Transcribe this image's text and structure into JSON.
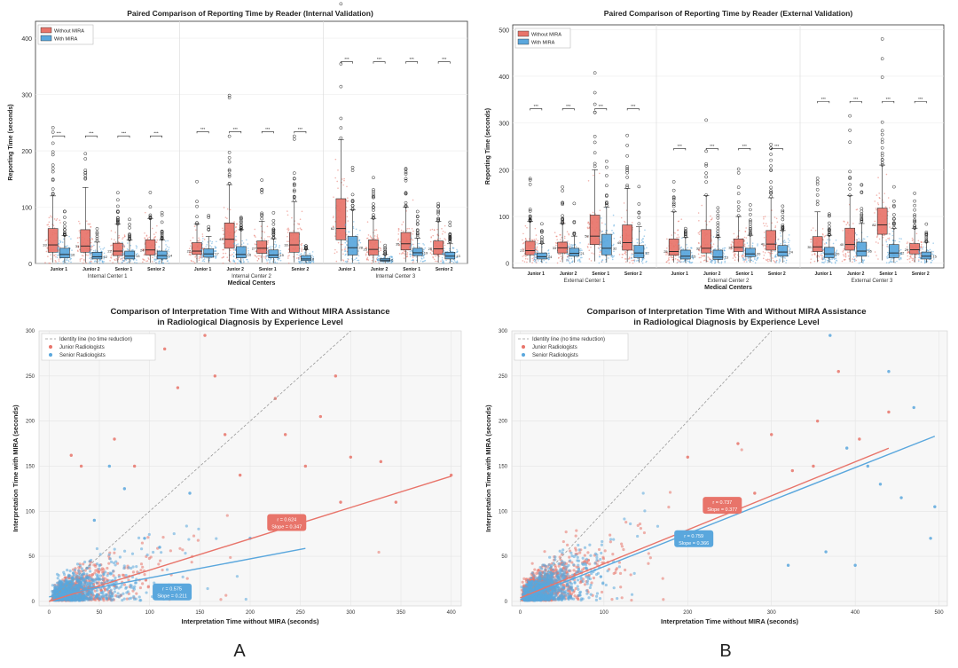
{
  "colors": {
    "without": "#e8746a",
    "with": "#5aa7dd",
    "identity": "#999999"
  },
  "chart_data": [
    {
      "id": "box-internal",
      "type": "box",
      "title": "Paired Comparison of Reporting Time by Reader (Internal Validation)",
      "xlabel": "Medical Centers",
      "ylabel": "Reporting Time (seconds)",
      "ylim": [
        0,
        430
      ],
      "yticks": [
        0,
        100,
        200,
        300,
        400
      ],
      "legend": {
        "position": "top-left",
        "entries": [
          "Without MIRA",
          "With MIRA"
        ]
      },
      "significance_label": "***",
      "groups": [
        {
          "center": "Internal Center 1",
          "readers": [
            {
              "reader": "Junior 1",
              "without": {
                "q1": 20,
                "median": 33,
                "q3": 62,
                "whisker_high": 120,
                "label": "33"
              },
              "with": {
                "q1": 10,
                "median": 16,
                "q3": 27,
                "whisker_high": 50,
                "label": "16"
              }
            },
            {
              "reader": "Junior 2",
              "without": {
                "q1": 20,
                "median": 31,
                "q3": 60,
                "whisker_high": 135,
                "label": "31"
              },
              "with": {
                "q1": 8,
                "median": 12,
                "q3": 20,
                "whisker_high": 38,
                "label": "12"
              }
            },
            {
              "reader": "Senior 1",
              "without": {
                "q1": 14,
                "median": 22,
                "q3": 36,
                "whisker_high": 70,
                "label": "22"
              },
              "with": {
                "q1": 8,
                "median": 13,
                "q3": 22,
                "whisker_high": 42,
                "label": "13"
              }
            },
            {
              "reader": "Senior 2",
              "without": {
                "q1": 15,
                "median": 24,
                "q3": 42,
                "whisker_high": 80,
                "label": "24"
              },
              "with": {
                "q1": 8,
                "median": 14,
                "q3": 22,
                "whisker_high": 42,
                "label": "14"
              }
            }
          ]
        },
        {
          "center": "Internal Center 2",
          "readers": [
            {
              "reader": "Junior 1",
              "without": {
                "q1": 16,
                "median": 22,
                "q3": 37,
                "whisker_high": 70,
                "label": "22"
              },
              "with": {
                "q1": 11,
                "median": 17,
                "q3": 26,
                "whisker_high": 48,
                "label": "17"
              }
            },
            {
              "reader": "Junior 2",
              "without": {
                "q1": 27,
                "median": 43,
                "q3": 72,
                "whisker_high": 140,
                "label": "43"
              },
              "with": {
                "q1": 10,
                "median": 16,
                "q3": 30,
                "whisker_high": 60,
                "label": "16"
              }
            },
            {
              "reader": "Senior 1",
              "without": {
                "q1": 18,
                "median": 27,
                "q3": 40,
                "whisker_high": 75,
                "label": "27"
              },
              "with": {
                "q1": 10,
                "median": 15,
                "q3": 24,
                "whisker_high": 44,
                "label": "15"
              }
            },
            {
              "reader": "Senior 2",
              "without": {
                "q1": 20,
                "median": 33,
                "q3": 55,
                "whisker_high": 110,
                "label": "33"
              },
              "with": {
                "q1": 5,
                "median": 8,
                "q3": 14,
                "whisker_high": 25,
                "label": "8"
              }
            }
          ]
        },
        {
          "center": "Internal Center 3",
          "readers": [
            {
              "reader": "Junior 1",
              "without": {
                "q1": 42,
                "median": 62,
                "q3": 115,
                "whisker_high": 220,
                "label": "62"
              },
              "with": {
                "q1": 15,
                "median": 28,
                "q3": 48,
                "whisker_high": 95,
                "label": "28"
              }
            },
            {
              "reader": "Junior 2",
              "without": {
                "q1": 15,
                "median": 25,
                "q3": 42,
                "whisker_high": 80,
                "label": "25"
              },
              "with": {
                "q1": 4,
                "median": 6,
                "q3": 9,
                "whisker_high": 16,
                "label": "6"
              }
            },
            {
              "reader": "Senior 1",
              "without": {
                "q1": 24,
                "median": 35,
                "q3": 55,
                "whisker_high": 100,
                "label": "35"
              },
              "with": {
                "q1": 14,
                "median": 19,
                "q3": 27,
                "whisker_high": 45,
                "label": "19"
              }
            },
            {
              "reader": "Senior 2",
              "without": {
                "q1": 16,
                "median": 26,
                "q3": 40,
                "whisker_high": 75,
                "label": "26"
              },
              "with": {
                "q1": 8,
                "median": 13,
                "q3": 20,
                "whisker_high": 35,
                "label": "13"
              }
            }
          ]
        }
      ]
    },
    {
      "id": "box-external",
      "type": "box",
      "title": "Paired Comparison of Reporting Time by Reader (External Validation)",
      "xlabel": "Medical Centers",
      "ylabel": "Reporting Time (seconds)",
      "ylim": [
        -10,
        510
      ],
      "yticks": [
        0,
        100,
        200,
        300,
        400,
        500
      ],
      "legend": {
        "position": "top-left",
        "entries": [
          "Without MIRA",
          "With MIRA"
        ]
      },
      "significance_label": "***",
      "groups": [
        {
          "center": "External Center 1",
          "readers": [
            {
              "reader": "Junior 1",
              "without": {
                "q1": 18,
                "median": 27,
                "q3": 47,
                "whisker_high": 90,
                "label": "27"
              },
              "with": {
                "q1": 9,
                "median": 14,
                "q3": 22,
                "whisker_high": 42,
                "label": "14"
              }
            },
            {
              "reader": "Junior 2",
              "without": {
                "q1": 22,
                "median": 33,
                "q3": 45,
                "whisker_high": 85,
                "label": "33"
              },
              "with": {
                "q1": 15,
                "median": 21,
                "q3": 32,
                "whisker_high": 58,
                "label": "21"
              }
            },
            {
              "reader": "Senior 1",
              "without": {
                "q1": 40,
                "median": 58,
                "q3": 103,
                "whisker_high": 200,
                "label": "58"
              },
              "with": {
                "q1": 18,
                "median": 32,
                "q3": 62,
                "whisker_high": 120,
                "label": "32"
              }
            },
            {
              "reader": "Senior 2",
              "without": {
                "q1": 28,
                "median": 44,
                "q3": 82,
                "whisker_high": 160,
                "label": "44"
              },
              "with": {
                "q1": 12,
                "median": 22,
                "q3": 38,
                "whisker_high": 78,
                "label": "22"
              }
            }
          ]
        },
        {
          "center": "External Center 2",
          "readers": [
            {
              "reader": "Junior 1",
              "without": {
                "q1": 17,
                "median": 25,
                "q3": 52,
                "whisker_high": 110,
                "label": "25"
              },
              "with": {
                "q1": 9,
                "median": 15,
                "q3": 28,
                "whisker_high": 55,
                "label": "15"
              }
            },
            {
              "reader": "Junior 2",
              "without": {
                "q1": 22,
                "median": 32,
                "q3": 72,
                "whisker_high": 145,
                "label": "32"
              },
              "with": {
                "q1": 8,
                "median": 13,
                "q3": 28,
                "whisker_high": 55,
                "label": "13"
              }
            },
            {
              "reader": "Senior 1",
              "without": {
                "q1": 25,
                "median": 34,
                "q3": 52,
                "whisker_high": 100,
                "label": "34"
              },
              "with": {
                "q1": 14,
                "median": 20,
                "q3": 32,
                "whisker_high": 60,
                "label": "20"
              }
            },
            {
              "reader": "Senior 2",
              "without": {
                "q1": 28,
                "median": 41,
                "q3": 70,
                "whisker_high": 140,
                "label": "41"
              },
              "with": {
                "q1": 15,
                "median": 24,
                "q3": 38,
                "whisker_high": 70,
                "label": "24"
              }
            }
          ]
        },
        {
          "center": "External Center 3",
          "readers": [
            {
              "reader": "Junior 1",
              "without": {
                "q1": 25,
                "median": 35,
                "q3": 57,
                "whisker_high": 110,
                "label": "35"
              },
              "with": {
                "q1": 12,
                "median": 20,
                "q3": 34,
                "whisker_high": 60,
                "label": "20"
              }
            },
            {
              "reader": "Junior 2",
              "without": {
                "q1": 28,
                "median": 40,
                "q3": 75,
                "whisker_high": 145,
                "label": "40"
              },
              "with": {
                "q1": 15,
                "median": 26,
                "q3": 45,
                "whisker_high": 85,
                "label": "26"
              }
            },
            {
              "reader": "Senior 1",
              "without": {
                "q1": 62,
                "median": 82,
                "q3": 118,
                "whisker_high": 210,
                "label": "82"
              },
              "with": {
                "q1": 12,
                "median": 22,
                "q3": 40,
                "whisker_high": 75,
                "label": "22"
              }
            },
            {
              "reader": "Senior 2",
              "without": {
                "q1": 20,
                "median": 29,
                "q3": 42,
                "whisker_high": 75,
                "label": "29"
              },
              "with": {
                "q1": 9,
                "median": 15,
                "q3": 24,
                "whisker_high": 45,
                "label": "15"
              }
            }
          ]
        }
      ]
    },
    {
      "id": "scatter-A",
      "type": "scatter",
      "panel_label": "A",
      "title": "Comparison of Interpretation Time With and Without MIRA Assistance",
      "subtitle": "in Radiological Diagnosis by Experience Level",
      "xlabel": "Interpretation Time without MIRA (seconds)",
      "ylabel": "Interpretation Time with MIRA (seconds)",
      "xlim": [
        -10,
        410
      ],
      "ylim": [
        -5,
        300
      ],
      "xticks": [
        0,
        50,
        100,
        150,
        200,
        250,
        300,
        350,
        400
      ],
      "yticks": [
        0,
        50,
        100,
        150,
        200,
        250,
        300
      ],
      "legend": {
        "position": "top-left",
        "entries": [
          "Identity line (no time reduction)",
          "Junior Radiologists",
          "Senior Radiologists"
        ]
      },
      "fits": [
        {
          "group": "Junior Radiologists",
          "x_range": [
            0,
            400
          ],
          "intercept": 0,
          "slope": 0.347,
          "annotation": [
            "r = 0.624",
            "Slope = 0.347"
          ]
        },
        {
          "group": "Senior Radiologists",
          "x_range": [
            0,
            255
          ],
          "intercept": 5,
          "slope": 0.211,
          "annotation": [
            "r = 0.575",
            "Slope = 0.211"
          ]
        }
      ],
      "outliers_junior": [
        [
          32,
          150
        ],
        [
          65,
          180
        ],
        [
          85,
          150
        ],
        [
          115,
          280
        ],
        [
          128,
          237
        ],
        [
          155,
          295
        ],
        [
          165,
          250
        ],
        [
          225,
          225
        ],
        [
          235,
          185
        ],
        [
          270,
          205
        ],
        [
          285,
          250
        ],
        [
          300,
          160
        ],
        [
          330,
          155
        ],
        [
          400,
          140
        ],
        [
          22,
          162
        ],
        [
          175,
          185
        ],
        [
          255,
          150
        ],
        [
          190,
          140
        ],
        [
          290,
          110
        ],
        [
          345,
          110
        ]
      ],
      "outliers_senior": [
        [
          60,
          150
        ],
        [
          75,
          125
        ],
        [
          45,
          90
        ],
        [
          95,
          70
        ],
        [
          140,
          120
        ],
        [
          110,
          60
        ],
        [
          200,
          70
        ]
      ]
    },
    {
      "id": "scatter-B",
      "type": "scatter",
      "panel_label": "B",
      "title": "Comparison of Interpretation Time With and Without MIRA Assistance",
      "subtitle": "in Radiological Diagnosis by Experience Level",
      "xlabel": "Interpretation Time without MIRA (seconds)",
      "ylabel": "Interpretation Time with MIRA (seconds)",
      "xlim": [
        -10,
        510
      ],
      "ylim": [
        -5,
        300
      ],
      "xticks": [
        0,
        100,
        200,
        300,
        400,
        500
      ],
      "yticks": [
        0,
        50,
        100,
        150,
        200,
        250,
        300
      ],
      "legend": {
        "position": "top-left",
        "entries": [
          "Identity line (no time reduction)",
          "Junior Radiologists",
          "Senior Radiologists"
        ]
      },
      "fits": [
        {
          "group": "Junior Radiologists",
          "x_range": [
            0,
            440
          ],
          "intercept": 4,
          "slope": 0.377,
          "annotation": [
            "r = 0.737",
            "Slope = 0.377"
          ]
        },
        {
          "group": "Senior Radiologists",
          "x_range": [
            0,
            495
          ],
          "intercept": 2,
          "slope": 0.366,
          "annotation": [
            "r = 0.759",
            "Slope = 0.366"
          ]
        }
      ],
      "outliers_junior": [
        [
          200,
          160
        ],
        [
          260,
          175
        ],
        [
          300,
          185
        ],
        [
          325,
          145
        ],
        [
          355,
          200
        ],
        [
          380,
          255
        ],
        [
          405,
          180
        ],
        [
          440,
          210
        ],
        [
          280,
          120
        ],
        [
          350,
          150
        ]
      ],
      "outliers_senior": [
        [
          370,
          295
        ],
        [
          390,
          170
        ],
        [
          415,
          150
        ],
        [
          430,
          130
        ],
        [
          470,
          215
        ],
        [
          490,
          70
        ],
        [
          495,
          105
        ],
        [
          365,
          55
        ],
        [
          320,
          40
        ],
        [
          440,
          255
        ],
        [
          400,
          40
        ],
        [
          455,
          115
        ]
      ]
    }
  ]
}
